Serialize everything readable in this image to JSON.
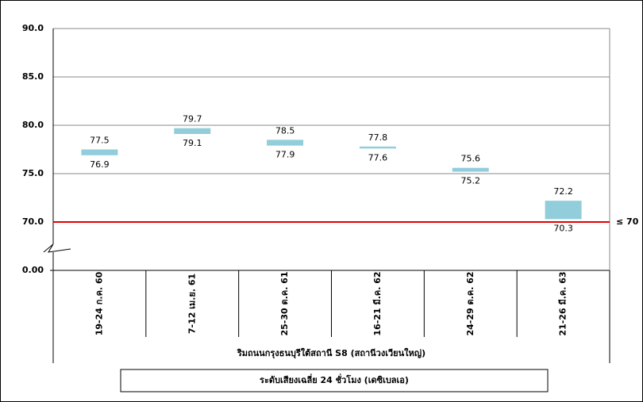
{
  "chart_data": {
    "type": "range_bar",
    "categories": [
      "19-24 ก.ค. 60",
      "7-12 เม.ย. 61",
      "25-30 ต.ค. 61",
      "16-21 มี.ค. 62",
      "24-29 ต.ค. 62",
      "21-26 มี.ค. 63"
    ],
    "series": [
      {
        "name": "ระดับเสียงเฉลี่ย 24 ชั่วโมง (เดซิเบลเอ)",
        "color": "#92cddc",
        "low": [
          76.9,
          79.1,
          77.9,
          77.6,
          75.2,
          70.3
        ],
        "high": [
          77.5,
          79.7,
          78.5,
          77.8,
          75.6,
          72.2
        ]
      }
    ],
    "x_label": "ริมถนนกรุงธนบุรีใต้สถานี S8 (สถานีวงเวียนใหญ่)",
    "ylim": [
      0,
      90
    ],
    "yticks": [
      {
        "value": 0,
        "label": "0.00"
      },
      {
        "value": 70,
        "label": "70.0"
      },
      {
        "value": 75,
        "label": "75.0"
      },
      {
        "value": 80,
        "label": "80.0"
      },
      {
        "value": 85,
        "label": "85.0"
      },
      {
        "value": 90,
        "label": "90.0"
      }
    ],
    "y_break": true,
    "grid": true,
    "threshold": 70,
    "threshold_label": "≤ 70",
    "threshold_color": "#e00000"
  }
}
